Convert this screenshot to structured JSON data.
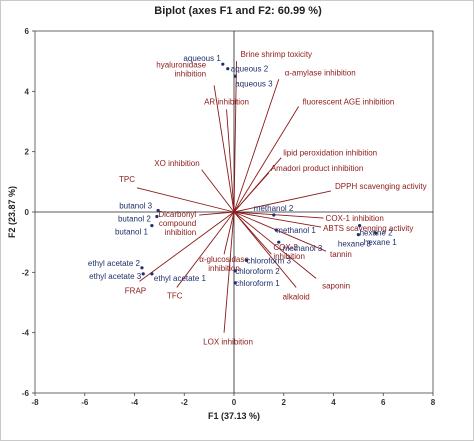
{
  "chart_data": {
    "type": "scatter",
    "subtype": "biplot",
    "title": "Biplot (axes F1 and F2: 60.99 %)",
    "xlabel": "F1 (37.13 %)",
    "ylabel": "F2 (23.87 %)",
    "xlim": [
      -8,
      8
    ],
    "ylim": [
      -6,
      6
    ],
    "xticks": [
      "-8",
      "-6",
      "-4",
      "-2",
      "0",
      "2",
      "4",
      "6",
      "8"
    ],
    "yticks": [
      "-6",
      "-4",
      "-2",
      "0",
      "2",
      "4",
      "6"
    ],
    "colors": {
      "variables": "#8b1a1a",
      "observations": "#1f2f6b"
    },
    "variables": [
      {
        "name": "Brine shrimp toxicity",
        "x": 0.1,
        "y": 5.0
      },
      {
        "name": "hyaluronidase inhibition",
        "x": -0.8,
        "y": 4.2
      },
      {
        "name": "α-amylase inhibition",
        "x": 1.8,
        "y": 4.4
      },
      {
        "name": "AR inhibition",
        "x": -0.3,
        "y": 3.4
      },
      {
        "name": "fluorescent AGE inhibition",
        "x": 2.6,
        "y": 3.5
      },
      {
        "name": "XO inhibition",
        "x": -1.3,
        "y": 1.4
      },
      {
        "name": "lipid peroxidation inhibition",
        "x": 1.9,
        "y": 1.8
      },
      {
        "name": "Amadori product inhibition",
        "x": 1.4,
        "y": 1.3
      },
      {
        "name": "TPC",
        "x": -3.9,
        "y": 0.8
      },
      {
        "name": "DPPH scavenging activity",
        "x": 3.9,
        "y": 0.7
      },
      {
        "name": "COX-1 inhibition",
        "x": 3.6,
        "y": -0.2
      },
      {
        "name": "ABTS scavenging activity",
        "x": 3.5,
        "y": -0.5
      },
      {
        "name": "Dicarbonyl compound inhibition",
        "x": -1.4,
        "y": -0.1
      },
      {
        "name": "α-glucosidase inhibition",
        "x": -0.4,
        "y": -1.4
      },
      {
        "name": "COX-2 inhibition",
        "x": 1.5,
        "y": -1.4
      },
      {
        "name": "tannin",
        "x": 3.7,
        "y": -1.3
      },
      {
        "name": "saponin",
        "x": 3.3,
        "y": -2.2
      },
      {
        "name": "alkaloid",
        "x": 2.5,
        "y": -2.5
      },
      {
        "name": "FRAP",
        "x": -3.8,
        "y": -2.3
      },
      {
        "name": "TFC",
        "x": -2.3,
        "y": -2.5
      },
      {
        "name": "LOX inhibition",
        "x": -0.4,
        "y": -4.0
      }
    ],
    "observations": [
      {
        "name": "aqueous 1",
        "x": -0.45,
        "y": 4.9
      },
      {
        "name": "aqueous 2",
        "x": -0.25,
        "y": 4.75
      },
      {
        "name": "aqueous 3",
        "x": 0.05,
        "y": 4.5
      },
      {
        "name": "butanol 3",
        "x": -3.05,
        "y": 0.05
      },
      {
        "name": "butanol 2",
        "x": -3.1,
        "y": -0.15
      },
      {
        "name": "butanol 1",
        "x": -3.3,
        "y": -0.45
      },
      {
        "name": "methanol 2",
        "x": 1.6,
        "y": -0.1
      },
      {
        "name": "methanol 1",
        "x": 1.7,
        "y": -0.6
      },
      {
        "name": "methanol 3",
        "x": 1.8,
        "y": -1.0
      },
      {
        "name": "hexane 3",
        "x": 5.0,
        "y": -0.75
      },
      {
        "name": "hexane 2",
        "x": 5.05,
        "y": -0.45
      },
      {
        "name": "hexane 1",
        "x": 5.7,
        "y": -0.7
      },
      {
        "name": "chloroform 3",
        "x": 0.5,
        "y": -1.6
      },
      {
        "name": "chloroform 2",
        "x": 0.05,
        "y": -1.95
      },
      {
        "name": "chloroform 1",
        "x": 0.05,
        "y": -2.35
      },
      {
        "name": "ethyl acetate 2",
        "x": -3.7,
        "y": -1.85
      },
      {
        "name": "ethyl acetate 3",
        "x": -3.65,
        "y": -2.05
      },
      {
        "name": "ethyl acetate 1",
        "x": -3.3,
        "y": -2.05
      }
    ]
  }
}
